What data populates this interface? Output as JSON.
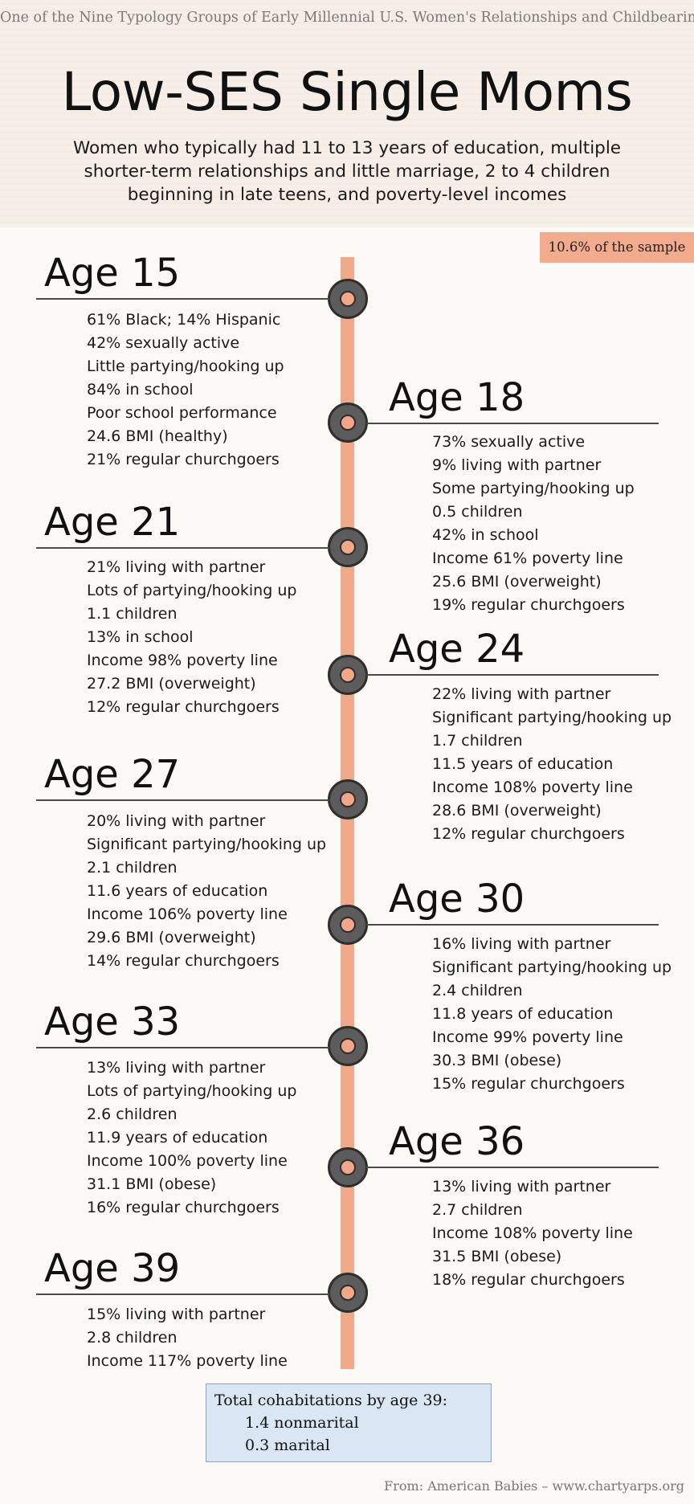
{
  "header": {
    "top_note": "One of the Nine Typology Groups of Early Millennial U.S. Women's Relationships and Childbearing",
    "title": "Low-SES Single Moms",
    "subtitle": "Women who typically had 11 to 13 years of education, multiple shorter-term relationships and little marriage, 2 to 4 children beginning in late teens, and poverty-level incomes"
  },
  "sample_badge": "10.6% of the sample",
  "timeline": {
    "bar_color": "#eea98b",
    "node_color": "#5c5c5c",
    "ages": [
      {
        "label": "Age 15",
        "facts": [
          "61% Black; 14% Hispanic",
          "42% sexually active",
          "Little partying/hooking up",
          "84% in school",
          "Poor school performance",
          "24.6 BMI (healthy)",
          "21% regular churchgoers"
        ]
      },
      {
        "label": "Age 18",
        "facts": [
          "73% sexually active",
          "9% living with partner",
          "Some partying/hooking up",
          "0.5 children",
          "42% in school",
          "Income 61% poverty line",
          "25.6 BMI (overweight)",
          "19% regular churchgoers"
        ]
      },
      {
        "label": "Age 21",
        "facts": [
          "21% living with partner",
          "Lots of partying/hooking up",
          "1.1 children",
          "13% in school",
          "Income 98% poverty line",
          "27.2 BMI (overweight)",
          "12% regular churchgoers"
        ]
      },
      {
        "label": "Age 24",
        "facts": [
          "22% living with partner",
          "Significant partying/hooking up",
          "1.7 children",
          "11.5 years of education",
          "Income 108% poverty line",
          "28.6 BMI (overweight)",
          "12% regular churchgoers"
        ]
      },
      {
        "label": "Age 27",
        "facts": [
          "20% living with partner",
          "Significant partying/hooking up",
          "2.1 children",
          "11.6 years of education",
          "Income 106% poverty line",
          "29.6 BMI (overweight)",
          "14% regular churchgoers"
        ]
      },
      {
        "label": "Age 30",
        "facts": [
          "16% living with partner",
          "Significant partying/hooking up",
          "2.4 children",
          "11.8 years of education",
          "Income 99% poverty line",
          "30.3 BMI (obese)",
          "15% regular churchgoers"
        ]
      },
      {
        "label": "Age 33",
        "facts": [
          "13% living with partner",
          "Lots of partying/hooking up",
          "2.6 children",
          "11.9 years of education",
          "Income 100% poverty line",
          "31.1 BMI (obese)",
          "16% regular churchgoers"
        ]
      },
      {
        "label": "Age 36",
        "facts": [
          "13% living with partner",
          "2.7 children",
          "Income 108% poverty line",
          "31.5 BMI (obese)",
          "18% regular churchgoers"
        ]
      },
      {
        "label": "Age 39",
        "facts": [
          "15% living with partner",
          "2.8 children",
          "Income 117% poverty line"
        ]
      }
    ]
  },
  "summary": {
    "title": "Total cohabitations by age 39:",
    "nonmarital": "1.4 nonmarital",
    "marital": "0.3 marital"
  },
  "footer": "From: American Babies – www.chartyarps.org"
}
